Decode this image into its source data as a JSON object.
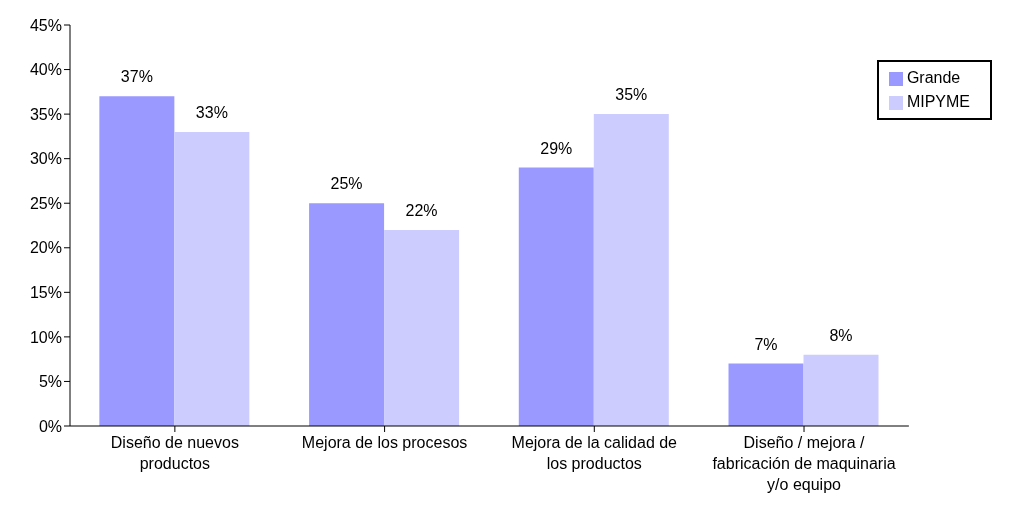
{
  "chart_data": {
    "type": "bar",
    "categories": [
      "Diseño de nuevos productos",
      "Mejora de los procesos",
      "Mejora de la calidad de los productos",
      "Diseño / mejora / fabricación de maquinaria y/o equipo"
    ],
    "series": [
      {
        "name": "Grande",
        "color": "#9999ff",
        "values": [
          37,
          25,
          29,
          7
        ],
        "value_labels": [
          "37%",
          "25%",
          "29%",
          "7%"
        ]
      },
      {
        "name": "MIPYME",
        "color": "#ccccff",
        "values": [
          33,
          22,
          35,
          8
        ],
        "value_labels": [
          "33%",
          "22%",
          "35%",
          "8%"
        ]
      }
    ],
    "ylim": [
      0,
      45
    ],
    "yticks": [
      {
        "value": 0,
        "label": "0%"
      },
      {
        "value": 5,
        "label": "5%"
      },
      {
        "value": 10,
        "label": "10%"
      },
      {
        "value": 15,
        "label": "15%"
      },
      {
        "value": 20,
        "label": "20%"
      },
      {
        "value": 25,
        "label": "25%"
      },
      {
        "value": 30,
        "label": "30%"
      },
      {
        "value": 35,
        "label": "35%"
      },
      {
        "value": 40,
        "label": "40%"
      },
      {
        "value": 45,
        "label": "45%"
      }
    ],
    "legend": "top right",
    "grid": false
  }
}
